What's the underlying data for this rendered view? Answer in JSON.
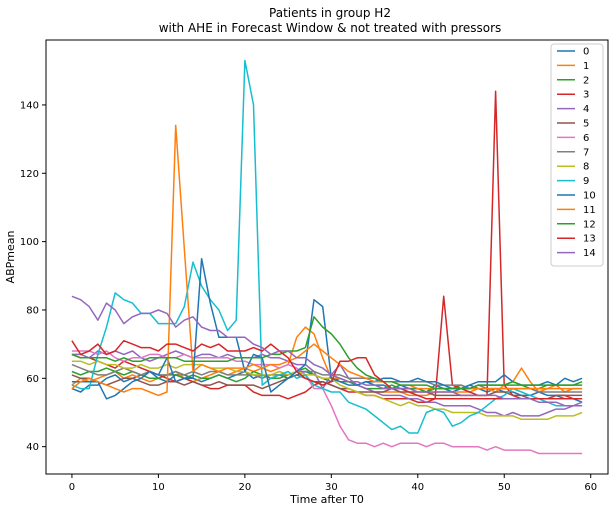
{
  "chart_data": {
    "type": "line",
    "title": "Patients in group H2",
    "subtitle": "with AHE in Forecast Window & not treated with pressors",
    "xlabel": "Time after T0",
    "ylabel": "ABPmean",
    "xlim": [
      -3,
      62
    ],
    "ylim": [
      32,
      159
    ],
    "xticks": [
      0,
      10,
      20,
      30,
      40,
      50,
      60
    ],
    "yticks": [
      40,
      60,
      80,
      100,
      120,
      140
    ],
    "grid": false,
    "legend_position": "top-right",
    "x": [
      0,
      1,
      2,
      3,
      4,
      5,
      6,
      7,
      8,
      9,
      10,
      11,
      12,
      13,
      14,
      15,
      16,
      17,
      18,
      19,
      20,
      21,
      22,
      23,
      24,
      25,
      26,
      27,
      28,
      29,
      30,
      31,
      32,
      33,
      34,
      35,
      36,
      37,
      38,
      39,
      40,
      41,
      42,
      43,
      44,
      45,
      46,
      47,
      48,
      49,
      50,
      51,
      52,
      53,
      54,
      55,
      56,
      57,
      58,
      59
    ],
    "series": [
      {
        "name": "0",
        "color": "#1f77b4",
        "values": [
          57,
          56,
          58,
          58,
          60,
          61,
          59,
          60,
          61,
          62,
          60,
          59,
          61,
          61,
          60,
          59,
          60,
          61,
          60,
          61,
          62,
          60,
          61,
          60,
          61,
          60,
          61,
          62,
          61,
          60,
          59,
          60,
          59,
          58,
          59,
          58,
          58,
          57,
          58,
          57,
          57,
          56,
          58,
          57,
          56,
          57,
          58,
          57,
          56,
          57,
          56,
          56,
          55,
          55,
          56,
          55,
          55,
          54,
          54,
          53
        ]
      },
      {
        "name": "1",
        "color": "#ff7f0e",
        "values": [
          58,
          60,
          59,
          60,
          61,
          62,
          60,
          61,
          60,
          59,
          60,
          61,
          62,
          60,
          59,
          60,
          61,
          62,
          61,
          62,
          63,
          62,
          63,
          62,
          63,
          64,
          72,
          75,
          73,
          66,
          60,
          60,
          59,
          58,
          57,
          56,
          56,
          56,
          56,
          55,
          55,
          55,
          56,
          56,
          56,
          56,
          56,
          57,
          57,
          56,
          58,
          59,
          63,
          59,
          56,
          57,
          58,
          56,
          57,
          57
        ]
      },
      {
        "name": "2",
        "color": "#2ca02c",
        "values": [
          62,
          61,
          62,
          62,
          63,
          62,
          61,
          62,
          61,
          60,
          60,
          61,
          61,
          60,
          61,
          60,
          60,
          61,
          60,
          59,
          60,
          62,
          61,
          60,
          60,
          61,
          62,
          63,
          61,
          60,
          60,
          59,
          59,
          58,
          57,
          57,
          57,
          58,
          57,
          57,
          57,
          56,
          57,
          57,
          57,
          58,
          57,
          58,
          58,
          58,
          58,
          58,
          58,
          57,
          57,
          58,
          58,
          58,
          58,
          59
        ]
      },
      {
        "name": "3",
        "color": "#d62728",
        "values": [
          67,
          66,
          66,
          65,
          64,
          63,
          65,
          64,
          63,
          62,
          61,
          60,
          59,
          60,
          59,
          58,
          57,
          57,
          58,
          58,
          58,
          56,
          55,
          55,
          55,
          54,
          55,
          56,
          58,
          59,
          58,
          57,
          56,
          56,
          55,
          55,
          54,
          54,
          54,
          54,
          53,
          53,
          54,
          84,
          58,
          57,
          56,
          55,
          55,
          144,
          58,
          55,
          54,
          54,
          54,
          54,
          55,
          55,
          54,
          54
        ]
      },
      {
        "name": "4",
        "color": "#9467bd",
        "values": [
          67,
          67,
          66,
          68,
          67,
          68,
          67,
          68,
          66,
          65,
          66,
          67,
          68,
          67,
          66,
          67,
          67,
          66,
          67,
          66,
          66,
          66,
          67,
          66,
          66,
          65,
          64,
          64,
          62,
          57,
          61,
          64,
          60,
          58,
          57,
          56,
          55,
          55,
          55,
          54,
          54,
          53,
          53,
          52,
          52,
          52,
          52,
          51,
          50,
          50,
          49,
          50,
          49,
          49,
          49,
          50,
          51,
          51,
          52,
          53
        ]
      },
      {
        "name": "5",
        "color": "#8c564b",
        "values": [
          61,
          60,
          60,
          59,
          58,
          59,
          60,
          60,
          59,
          58,
          58,
          59,
          59,
          58,
          59,
          58,
          58,
          59,
          58,
          58,
          58,
          58,
          57,
          58,
          59,
          60,
          61,
          60,
          59,
          59,
          58,
          57,
          57,
          56,
          56,
          56,
          56,
          57,
          56,
          56,
          56,
          56,
          55,
          55,
          55,
          55,
          55,
          55,
          55,
          56,
          56,
          55,
          55,
          54,
          54,
          54,
          55,
          55,
          55,
          55
        ]
      },
      {
        "name": "6",
        "color": "#e377c2",
        "values": [
          68,
          68,
          68,
          67,
          68,
          66,
          65,
          66,
          66,
          67,
          67,
          66,
          66,
          67,
          66,
          66,
          66,
          66,
          66,
          65,
          65,
          64,
          64,
          64,
          63,
          64,
          63,
          61,
          57,
          57,
          52,
          46,
          42,
          41,
          41,
          40,
          41,
          40,
          41,
          41,
          41,
          40,
          41,
          41,
          40,
          40,
          40,
          40,
          39,
          40,
          39,
          39,
          39,
          39,
          38,
          38,
          38,
          38,
          38,
          38
        ]
      },
      {
        "name": "7",
        "color": "#7f7f7f",
        "values": [
          64,
          63,
          62,
          61,
          61,
          62,
          63,
          62,
          61,
          62,
          61,
          61,
          62,
          61,
          62,
          61,
          62,
          62,
          61,
          61,
          61,
          61,
          60,
          61,
          61,
          61,
          62,
          62,
          62,
          61,
          61,
          61,
          60,
          60,
          60,
          60,
          59,
          59,
          59,
          59,
          59,
          59,
          58,
          58,
          58,
          58,
          57,
          58,
          57,
          57,
          57,
          57,
          57,
          57,
          56,
          56,
          56,
          56,
          56,
          56
        ]
      },
      {
        "name": "8",
        "color": "#bcbd22",
        "values": [
          65,
          65,
          64,
          65,
          64,
          64,
          63,
          63,
          64,
          63,
          63,
          64,
          63,
          64,
          64,
          64,
          63,
          63,
          63,
          62,
          62,
          61,
          61,
          61,
          62,
          61,
          62,
          61,
          61,
          60,
          60,
          58,
          57,
          56,
          55,
          55,
          54,
          53,
          52,
          53,
          52,
          52,
          51,
          51,
          50,
          50,
          50,
          50,
          49,
          49,
          49,
          49,
          48,
          48,
          48,
          48,
          49,
          49,
          49,
          50
        ]
      },
      {
        "name": "9",
        "color": "#17becf",
        "values": [
          58,
          57,
          57,
          67,
          75,
          85,
          83,
          82,
          79,
          79,
          76,
          76,
          76,
          81,
          94,
          87,
          83,
          80,
          74,
          77,
          153,
          140,
          58,
          60,
          61,
          62,
          60,
          61,
          58,
          57,
          56,
          56,
          53,
          52,
          51,
          49,
          47,
          45,
          46,
          44,
          44,
          50,
          51,
          50,
          46,
          47,
          49,
          50,
          52,
          54,
          55,
          57,
          56,
          55,
          54,
          53,
          52,
          52,
          52,
          52
        ]
      },
      {
        "name": "10",
        "color": "#1f77b4",
        "values": [
          59,
          59,
          59,
          59,
          54,
          55,
          57,
          59,
          60,
          62,
          61,
          66,
          59,
          60,
          60,
          95,
          82,
          72,
          72,
          72,
          62,
          67,
          66,
          56,
          58,
          60,
          62,
          64,
          83,
          81,
          60,
          59,
          58,
          58,
          59,
          59,
          60,
          60,
          59,
          59,
          60,
          59,
          59,
          58,
          57,
          57,
          58,
          59,
          59,
          59,
          61,
          59,
          58,
          58,
          58,
          59,
          58,
          60,
          59,
          60
        ]
      },
      {
        "name": "11",
        "color": "#ff7f0e",
        "values": [
          57,
          59,
          60,
          59,
          58,
          57,
          56,
          57,
          57,
          56,
          55,
          56,
          134,
          98,
          62,
          64,
          63,
          62,
          63,
          63,
          63,
          64,
          63,
          64,
          64,
          65,
          66,
          68,
          70,
          68,
          66,
          64,
          62,
          61,
          60,
          59,
          59,
          59,
          58,
          58,
          57,
          57,
          57,
          57,
          57,
          57,
          57,
          57,
          57,
          57,
          57,
          57,
          57,
          57,
          57,
          57,
          57,
          57,
          57,
          57
        ]
      },
      {
        "name": "12",
        "color": "#2ca02c",
        "values": [
          67,
          66,
          66,
          66,
          66,
          65,
          66,
          65,
          65,
          66,
          66,
          66,
          66,
          65,
          65,
          65,
          65,
          65,
          65,
          66,
          66,
          66,
          66,
          67,
          67,
          68,
          68,
          69,
          78,
          75,
          73,
          70,
          66,
          63,
          61,
          60,
          59,
          59,
          58,
          58,
          58,
          58,
          57,
          57,
          57,
          57,
          57,
          58,
          58,
          58,
          58,
          59,
          58,
          58,
          58,
          58,
          58,
          58,
          58,
          58
        ]
      },
      {
        "name": "13",
        "color": "#d62728",
        "values": [
          71,
          67,
          68,
          70,
          67,
          68,
          71,
          70,
          69,
          69,
          68,
          70,
          70,
          69,
          68,
          70,
          69,
          70,
          68,
          68,
          68,
          69,
          68,
          70,
          68,
          66,
          62,
          60,
          59,
          58,
          59,
          65,
          65,
          66,
          66,
          61,
          59,
          57,
          57,
          56,
          55,
          54,
          54,
          54,
          54,
          54,
          54,
          54,
          54,
          54,
          54,
          54,
          54,
          54,
          54,
          54,
          54,
          54,
          54,
          54
        ]
      },
      {
        "name": "14",
        "color": "#9467bd",
        "values": [
          84,
          83,
          81,
          77,
          82,
          80,
          76,
          78,
          79,
          79,
          80,
          79,
          75,
          77,
          78,
          75,
          74,
          74,
          72,
          72,
          72,
          70,
          69,
          67,
          68,
          68,
          66,
          66,
          64,
          63,
          61,
          60,
          59,
          59,
          58,
          58,
          57,
          57,
          57,
          57,
          56,
          56,
          56,
          56,
          56,
          55,
          55,
          55,
          55,
          55,
          54,
          54,
          54,
          54,
          53,
          53,
          53,
          52,
          52,
          52
        ]
      }
    ]
  }
}
